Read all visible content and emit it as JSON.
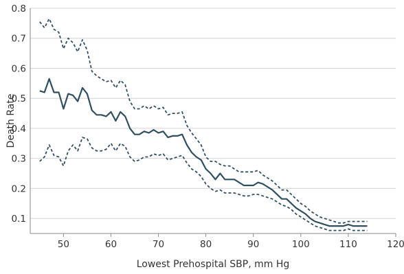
{
  "chart_data": {
    "type": "line",
    "xlabel": "Lowest Prehospital SBP, mm Hg",
    "ylabel": "Death Rate",
    "xlim": [
      43,
      120
    ],
    "ylim": [
      0.05,
      0.8
    ],
    "x_ticks": [
      50,
      60,
      70,
      80,
      90,
      100,
      110,
      120
    ],
    "y_ticks": [
      0.1,
      0.2,
      0.3,
      0.4,
      0.5,
      0.6,
      0.7,
      0.8
    ],
    "grid": "horizontal",
    "x": [
      45,
      46,
      47,
      48,
      49,
      50,
      51,
      52,
      53,
      54,
      55,
      56,
      57,
      58,
      59,
      60,
      61,
      62,
      63,
      64,
      65,
      66,
      67,
      68,
      69,
      70,
      71,
      72,
      73,
      74,
      75,
      76,
      77,
      78,
      79,
      80,
      81,
      82,
      83,
      84,
      85,
      86,
      87,
      88,
      89,
      90,
      91,
      92,
      93,
      94,
      95,
      96,
      97,
      98,
      99,
      100,
      101,
      102,
      103,
      104,
      105,
      106,
      107,
      108,
      109,
      110,
      111,
      112,
      113,
      114
    ],
    "series": [
      {
        "role": "estimate",
        "color": "#2f4f5f",
        "line_style": "solid",
        "values": [
          0.525,
          0.52,
          0.565,
          0.52,
          0.52,
          0.465,
          0.515,
          0.51,
          0.49,
          0.535,
          0.515,
          0.46,
          0.445,
          0.445,
          0.44,
          0.455,
          0.425,
          0.455,
          0.44,
          0.4,
          0.38,
          0.38,
          0.39,
          0.385,
          0.395,
          0.385,
          0.39,
          0.37,
          0.375,
          0.375,
          0.38,
          0.345,
          0.32,
          0.305,
          0.295,
          0.265,
          0.25,
          0.23,
          0.25,
          0.23,
          0.23,
          0.23,
          0.22,
          0.21,
          0.21,
          0.21,
          0.22,
          0.215,
          0.205,
          0.195,
          0.18,
          0.165,
          0.165,
          0.15,
          0.135,
          0.125,
          0.115,
          0.1,
          0.09,
          0.085,
          0.08,
          0.075,
          0.075,
          0.075,
          0.075,
          0.08,
          0.075,
          0.075,
          0.075,
          0.075
        ]
      },
      {
        "role": "upper-ci",
        "color": "#2f4f5f",
        "line_style": "dashed",
        "values": [
          0.755,
          0.735,
          0.765,
          0.73,
          0.72,
          0.665,
          0.7,
          0.685,
          0.655,
          0.695,
          0.66,
          0.59,
          0.575,
          0.565,
          0.555,
          0.56,
          0.535,
          0.56,
          0.545,
          0.49,
          0.465,
          0.465,
          0.475,
          0.465,
          0.475,
          0.465,
          0.47,
          0.445,
          0.45,
          0.45,
          0.455,
          0.41,
          0.385,
          0.365,
          0.345,
          0.305,
          0.29,
          0.29,
          0.28,
          0.275,
          0.275,
          0.265,
          0.255,
          0.255,
          0.255,
          0.255,
          0.26,
          0.245,
          0.235,
          0.225,
          0.21,
          0.195,
          0.195,
          0.18,
          0.165,
          0.15,
          0.14,
          0.125,
          0.115,
          0.105,
          0.1,
          0.095,
          0.09,
          0.085,
          0.085,
          0.09,
          0.09,
          0.09,
          0.09,
          0.09
        ]
      },
      {
        "role": "lower-ci",
        "color": "#2f4f5f",
        "line_style": "dashed",
        "values": [
          0.29,
          0.305,
          0.345,
          0.31,
          0.305,
          0.275,
          0.325,
          0.345,
          0.325,
          0.37,
          0.365,
          0.335,
          0.325,
          0.325,
          0.33,
          0.35,
          0.325,
          0.35,
          0.34,
          0.305,
          0.29,
          0.295,
          0.305,
          0.305,
          0.315,
          0.31,
          0.315,
          0.295,
          0.3,
          0.305,
          0.31,
          0.285,
          0.265,
          0.255,
          0.24,
          0.215,
          0.2,
          0.19,
          0.195,
          0.185,
          0.185,
          0.185,
          0.18,
          0.175,
          0.175,
          0.18,
          0.18,
          0.175,
          0.17,
          0.165,
          0.155,
          0.145,
          0.14,
          0.13,
          0.115,
          0.105,
          0.095,
          0.085,
          0.075,
          0.07,
          0.065,
          0.06,
          0.06,
          0.06,
          0.06,
          0.065,
          0.06,
          0.06,
          0.06,
          0.06
        ]
      }
    ]
  }
}
